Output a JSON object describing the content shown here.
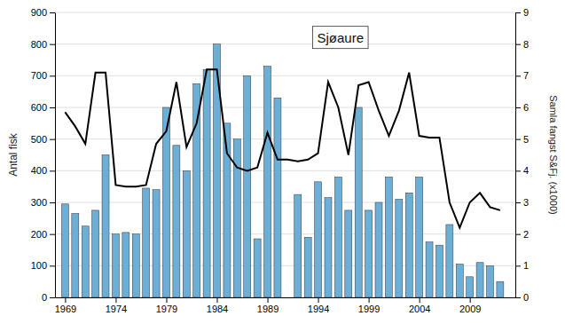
{
  "chart_data": {
    "type": "bar",
    "title": "Sjøaure",
    "ylabel": "Antal fisk",
    "y2label": "Samla fangst S&Fj. (x1000)",
    "xlim": [
      1968.0,
      2013.5
    ],
    "xticks": [
      1969,
      1974,
      1979,
      1984,
      1989,
      1994,
      1999,
      2004,
      2009
    ],
    "ylim": [
      0,
      900
    ],
    "yticks": [
      0,
      100,
      200,
      300,
      400,
      500,
      600,
      700,
      800,
      900
    ],
    "y2lim": [
      0,
      9
    ],
    "y2ticks": [
      0,
      1,
      2,
      3,
      4,
      5,
      6,
      7,
      8,
      9
    ],
    "grid": true,
    "series": [
      {
        "type": "bar",
        "color": "#6baed6",
        "x": [
          1969,
          1970,
          1971,
          1972,
          1973,
          1974,
          1975,
          1976,
          1977,
          1978,
          1979,
          1980,
          1981,
          1982,
          1983,
          1984,
          1985,
          1986,
          1987,
          1988,
          1989,
          1990,
          1992,
          1993,
          1994,
          1995,
          1996,
          1997,
          1998,
          1999,
          2000,
          2001,
          2002,
          2003,
          2004,
          2005,
          2006,
          2007,
          2008,
          2009,
          2010,
          2011,
          2012
        ],
        "values": [
          295,
          265,
          225,
          275,
          450,
          200,
          205,
          200,
          345,
          340,
          600,
          480,
          400,
          675,
          720,
          800,
          550,
          500,
          700,
          185,
          730,
          630,
          325,
          190,
          365,
          315,
          380,
          275,
          600,
          275,
          300,
          380,
          310,
          330,
          380,
          175,
          165,
          230,
          105,
          65,
          110,
          100,
          50
        ]
      },
      {
        "type": "line",
        "color": "#000000",
        "axis": "y2",
        "x": [
          1969,
          1970,
          1971,
          1972,
          1973,
          1974,
          1975,
          1976,
          1977,
          1978,
          1979,
          1980,
          1981,
          1982,
          1983,
          1984,
          1985,
          1986,
          1987,
          1988,
          1989,
          1990,
          1991,
          1992,
          1993,
          1994,
          1995,
          1996,
          1997,
          1998,
          1999,
          2000,
          2001,
          2002,
          2003,
          2004,
          2005,
          2006,
          2007,
          2008,
          2009,
          2010,
          2011,
          2012
        ],
        "values": [
          5.85,
          5.4,
          4.85,
          7.1,
          7.1,
          3.55,
          3.5,
          3.5,
          3.55,
          4.85,
          5.25,
          6.8,
          4.75,
          5.5,
          7.2,
          7.2,
          4.55,
          4.1,
          4.0,
          4.1,
          5.2,
          4.35,
          4.35,
          4.3,
          4.35,
          4.55,
          6.8,
          6.0,
          4.5,
          6.7,
          6.8,
          5.9,
          5.1,
          5.9,
          7.1,
          5.1,
          5.05,
          5.05,
          3.0,
          2.2,
          3.0,
          3.3,
          2.85,
          2.75
        ]
      }
    ]
  }
}
